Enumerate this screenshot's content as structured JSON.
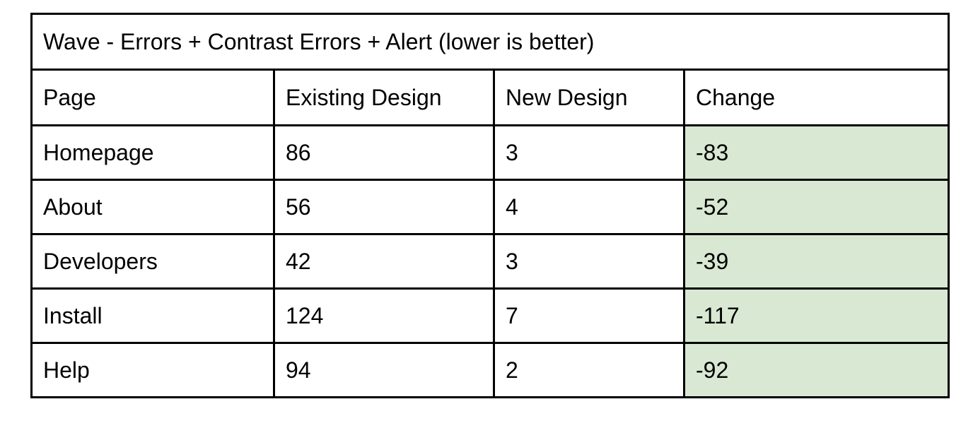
{
  "table": {
    "title": "Wave - Errors + Contrast Errors + Alert (lower is better)",
    "columns": [
      "Page",
      "Existing Design",
      "New Design",
      "Change"
    ],
    "rows": [
      {
        "page": "Homepage",
        "existing": "86",
        "new": "3",
        "change": "-83"
      },
      {
        "page": "About",
        "existing": "56",
        "new": "4",
        "change": "-52"
      },
      {
        "page": "Developers",
        "existing": "42",
        "new": "3",
        "change": "-39"
      },
      {
        "page": "Install",
        "existing": "124",
        "new": "7",
        "change": "-117"
      },
      {
        "page": "Help",
        "existing": "94",
        "new": "2",
        "change": "-92"
      }
    ],
    "change_highlight_color": "#d9e8d3"
  }
}
